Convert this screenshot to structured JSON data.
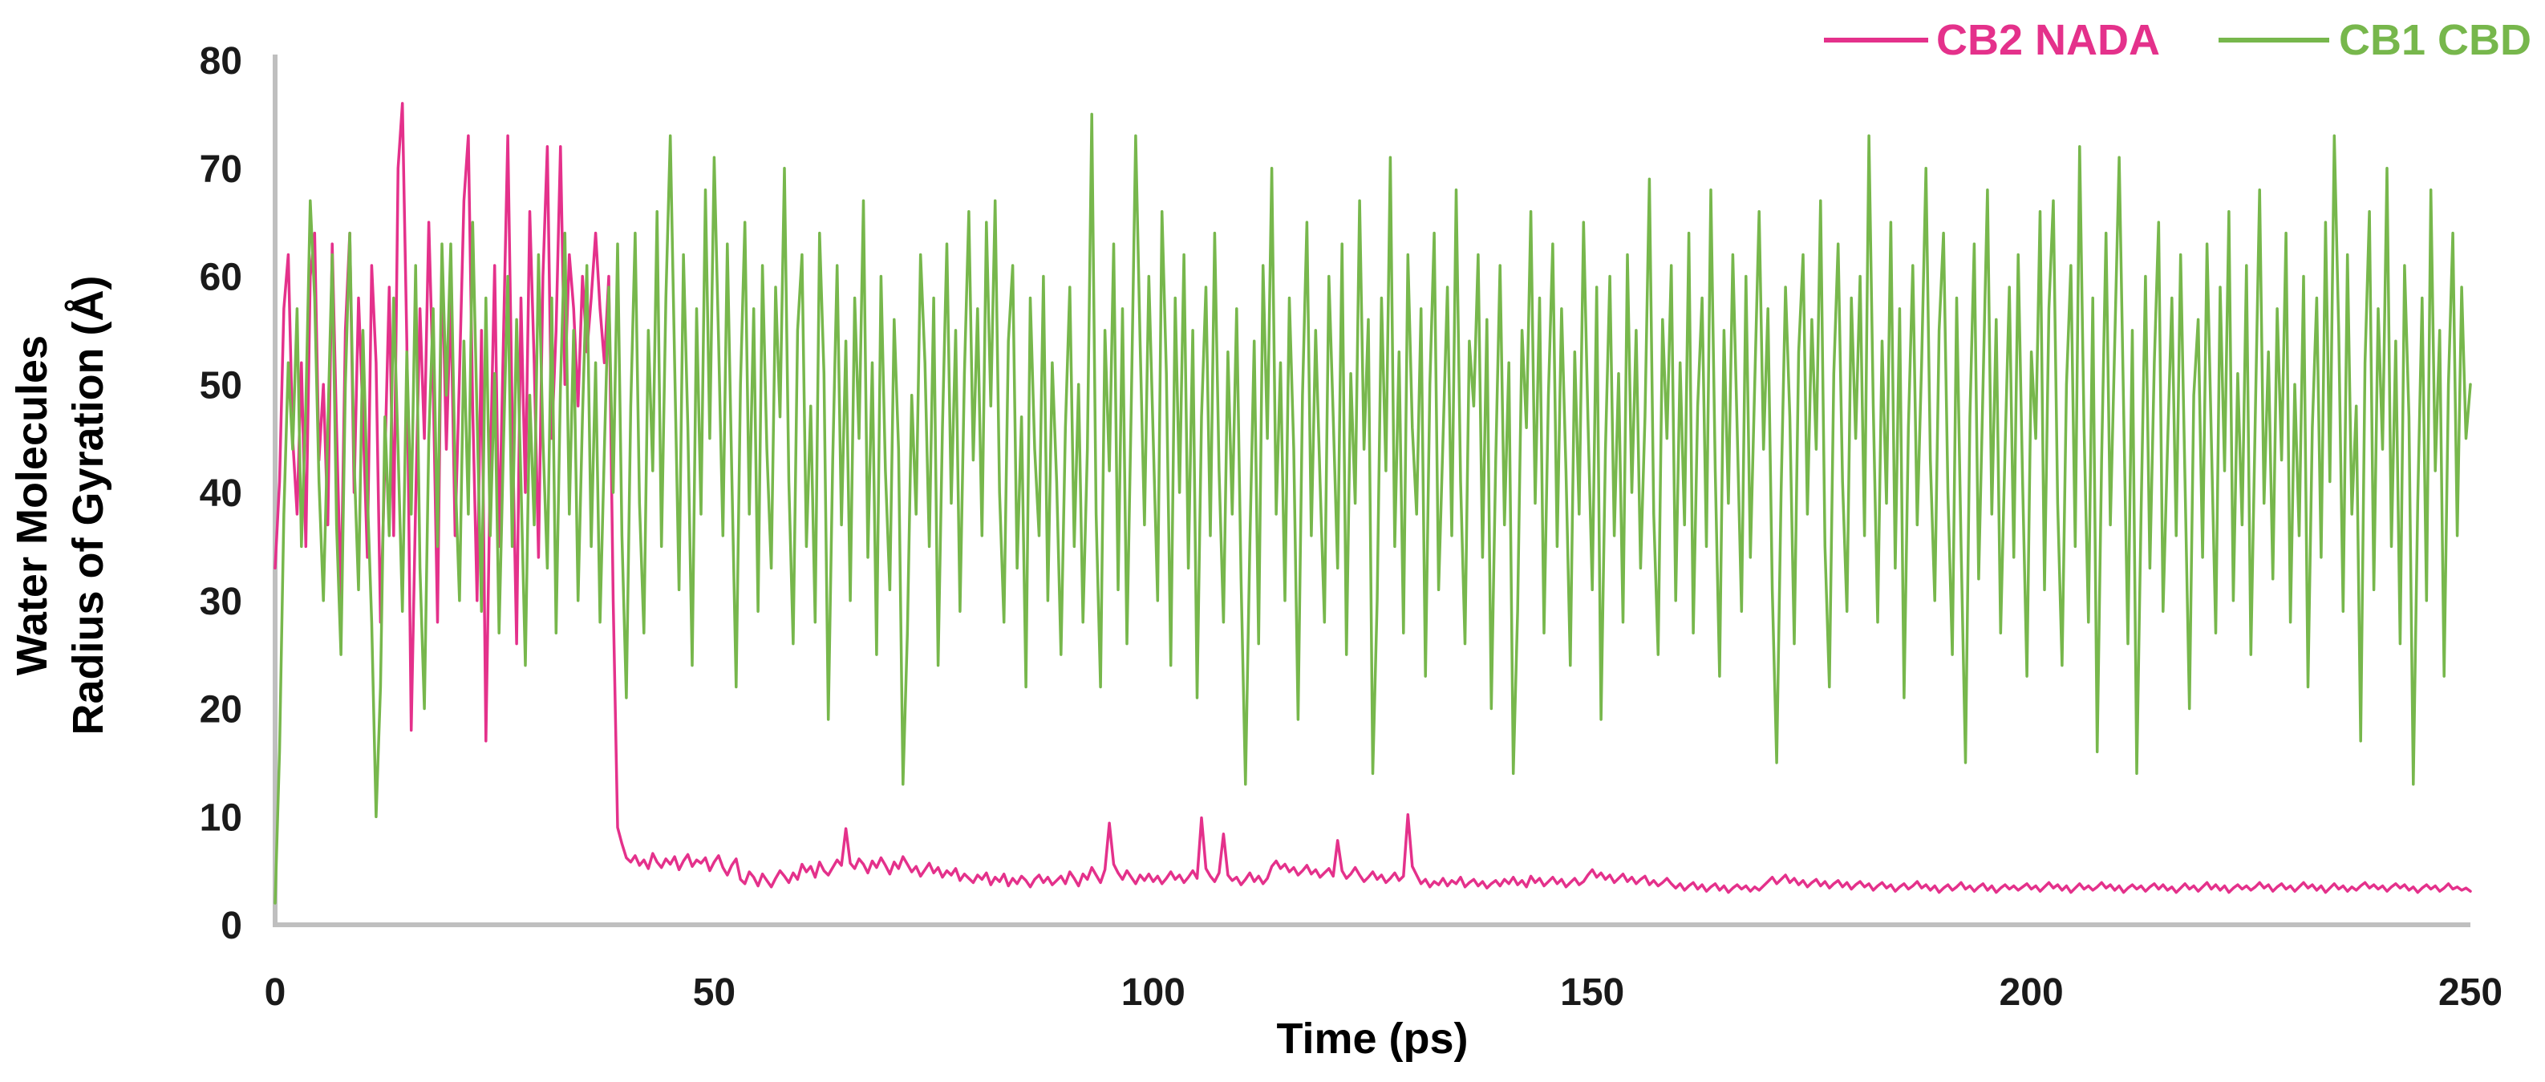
{
  "chart_data": {
    "type": "line",
    "title": "",
    "xlabel": "Time (ps)",
    "ylabel": "Water Molecules Radius of Gyration (Å)",
    "ylabel_lines": [
      "Water Molecules",
      "Radius of Gyration (Å)"
    ],
    "xlim": [
      0,
      250
    ],
    "ylim": [
      0,
      80
    ],
    "x_ticks": [
      0,
      50,
      100,
      150,
      200,
      250
    ],
    "y_ticks": [
      0,
      10,
      20,
      30,
      40,
      50,
      60,
      70,
      80
    ],
    "grid": false,
    "legend_position": "top-right",
    "legend": [
      "CB2 NADA",
      "CB1 CBD"
    ],
    "axis_color": "#bfbfbf",
    "series": [
      {
        "name": "CB2 NADA",
        "color": "#e4318b",
        "t_start": 0,
        "t_end": 250,
        "y": [
          33,
          41,
          57,
          62,
          45,
          38,
          52,
          35,
          60,
          64,
          43,
          50,
          37,
          63,
          46,
          30,
          55,
          64,
          40,
          58,
          47,
          34,
          61,
          52,
          28,
          43,
          59,
          36,
          70,
          76,
          54,
          18,
          39,
          57,
          45,
          65,
          50,
          28,
          62,
          44,
          58,
          36,
          51,
          67,
          73,
          48,
          30,
          55,
          17,
          42,
          61,
          35,
          54,
          73,
          47,
          26,
          58,
          40,
          66,
          52,
          34,
          60,
          72,
          45,
          55,
          72,
          50,
          62,
          57,
          48,
          60,
          53,
          58,
          64,
          57,
          52,
          60,
          30,
          9,
          7.5,
          6.2,
          5.8,
          6.4,
          5.5,
          6,
          5.2,
          6.6,
          5.8,
          5.3,
          6.1,
          5.6,
          6.3,
          5.1,
          5.9,
          6.5,
          5.4,
          6,
          5.7,
          6.2,
          5,
          5.8,
          6.4,
          5.3,
          4.6,
          5.5,
          6.1,
          4.2,
          3.8,
          4.9,
          4.4,
          3.6,
          4.7,
          4.1,
          3.5,
          4.3,
          5,
          4.5,
          3.9,
          4.8,
          4.2,
          5.6,
          4.9,
          5.4,
          4.4,
          5.8,
          5,
          4.6,
          5.3,
          6,
          5.5,
          8.9,
          5.7,
          5.2,
          6.1,
          5.6,
          4.8,
          5.9,
          5.3,
          6.2,
          5.5,
          4.7,
          5.8,
          5.2,
          6.3,
          5.6,
          4.9,
          5.4,
          4.5,
          5.1,
          5.7,
          4.8,
          5.3,
          4.4,
          5,
          4.6,
          5.2,
          4.1,
          4.7,
          4.3,
          3.9,
          4.6,
          4.2,
          4.8,
          3.7,
          4.4,
          4,
          4.7,
          3.6,
          4.3,
          3.8,
          4.5,
          4.1,
          3.5,
          4.2,
          4.6,
          3.9,
          4.4,
          3.7,
          4.1,
          4.5,
          3.8,
          4.9,
          4.3,
          3.6,
          4.7,
          4.2,
          5.3,
          4.6,
          3.9,
          5.1,
          9.4,
          5.6,
          4.8,
          4.2,
          5,
          4.4,
          3.8,
          4.6,
          4.1,
          4.7,
          4,
          4.5,
          3.8,
          4.3,
          4.9,
          4.2,
          4.6,
          3.9,
          4.4,
          5,
          4.3,
          9.9,
          5.2,
          4.5,
          4,
          4.8,
          8.4,
          4.6,
          4.1,
          4.4,
          3.7,
          4.2,
          4.8,
          4,
          4.5,
          3.8,
          4.3,
          5.4,
          5.9,
          5.2,
          5.6,
          4.9,
          5.3,
          4.6,
          5,
          5.5,
          4.7,
          5.1,
          4.4,
          4.8,
          5.2,
          4.5,
          7.8,
          5,
          4.3,
          4.7,
          5.3,
          4.6,
          4,
          4.4,
          4.9,
          4.2,
          4.6,
          3.9,
          4.3,
          4.8,
          4.1,
          4.5,
          10.2,
          5.4,
          4.6,
          3.8,
          4.2,
          3.5,
          4,
          3.7,
          4.3,
          3.6,
          4.1,
          3.8,
          4.4,
          3.5,
          3.9,
          4.2,
          3.6,
          4,
          3.4,
          3.8,
          4.1,
          3.6,
          4.2,
          3.8,
          4.4,
          3.7,
          4.1,
          3.5,
          4.5,
          3.9,
          4.3,
          3.6,
          4,
          4.4,
          3.8,
          4.2,
          3.5,
          3.9,
          4.3,
          3.7,
          4,
          4.6,
          5.1,
          4.4,
          4.8,
          4.2,
          4.6,
          3.9,
          4.3,
          4.7,
          4,
          4.4,
          3.8,
          4.2,
          4.5,
          3.7,
          4.1,
          3.6,
          3.9,
          4.3,
          3.8,
          3.4,
          3.8,
          3.2,
          3.6,
          3.9,
          3.3,
          3.7,
          3.1,
          3.5,
          3.8,
          3.2,
          3.6,
          3,
          3.4,
          3.7,
          3.3,
          3.6,
          3.1,
          3.5,
          3.2,
          3.6,
          4,
          4.4,
          3.8,
          4.2,
          4.6,
          3.9,
          4.3,
          3.7,
          4.1,
          3.5,
          3.9,
          4.2,
          3.6,
          4,
          3.4,
          3.8,
          4.1,
          3.5,
          3.9,
          3.3,
          3.7,
          4,
          3.5,
          3.8,
          3.2,
          3.6,
          3.9,
          3.4,
          3.7,
          3.1,
          3.5,
          3.8,
          3.3,
          3.6,
          4,
          3.4,
          3.7,
          3.2,
          3.6,
          3,
          3.4,
          3.7,
          3.2,
          3.5,
          3.9,
          3.3,
          3.6,
          3.1,
          3.5,
          3.8,
          3.2,
          3.6,
          3,
          3.4,
          3.7,
          3.3,
          3.6,
          3.2,
          3.5,
          3.8,
          3.3,
          3.6,
          3.1,
          3.5,
          3.9,
          3.4,
          3.7,
          3.2,
          3.6,
          3,
          3.4,
          3.8,
          3.3,
          3.6,
          3.2,
          3.5,
          3.9,
          3.4,
          3.7,
          3.2,
          3.6,
          3,
          3.4,
          3.7,
          3.3,
          3.6,
          3.1,
          3.5,
          3.8,
          3.3,
          3.7,
          3.2,
          3.5,
          3,
          3.4,
          3.8,
          3.3,
          3.6,
          3.1,
          3.5,
          3.9,
          3.3,
          3.7,
          3.2,
          3.6,
          3,
          3.4,
          3.7,
          3.3,
          3.6,
          3.2,
          3.5,
          3.9,
          3.4,
          3.7,
          3.1,
          3.5,
          3.8,
          3.3,
          3.6,
          3.1,
          3.5,
          3.9,
          3.4,
          3.7,
          3.2,
          3.6,
          3,
          3.4,
          3.8,
          3.3,
          3.6,
          3.1,
          3.5,
          3.2,
          3.6,
          3.9,
          3.4,
          3.7,
          3.3,
          3.6,
          3.1,
          3.5,
          3.8,
          3.4,
          3.7,
          3.2,
          3.5,
          3,
          3.4,
          3.7,
          3.3,
          3.6,
          3.1,
          3.4,
          3.8,
          3.3,
          3.5,
          3.2,
          3.4,
          3.1
        ]
      },
      {
        "name": "CB1 CBD",
        "color": "#77b74c",
        "t_start": 0,
        "t_end": 250,
        "y": [
          2,
          16,
          38,
          52,
          44,
          57,
          35,
          48,
          67,
          58,
          41,
          30,
          46,
          62,
          37,
          25,
          50,
          64,
          43,
          31,
          55,
          40,
          28,
          10,
          22,
          47,
          36,
          58,
          44,
          29,
          53,
          38,
          61,
          33,
          20,
          45,
          57,
          35,
          63,
          49,
          63,
          42,
          30,
          54,
          38,
          65,
          47,
          29,
          58,
          36,
          51,
          27,
          44,
          60,
          35,
          56,
          41,
          24,
          49,
          37,
          62,
          45,
          33,
          58,
          27,
          50,
          64,
          38,
          55,
          30,
          47,
          61,
          35,
          52,
          28,
          44,
          59,
          40,
          63,
          36,
          21,
          48,
          64,
          39,
          27,
          55,
          42,
          66,
          35,
          58,
          73,
          52,
          31,
          62,
          46,
          24,
          57,
          38,
          68,
          45,
          71,
          54,
          36,
          63,
          42,
          22,
          50,
          65,
          38,
          57,
          29,
          61,
          44,
          33,
          59,
          47,
          70,
          41,
          26,
          55,
          62,
          35,
          48,
          28,
          64,
          51,
          19,
          43,
          61,
          37,
          54,
          30,
          58,
          45,
          67,
          34,
          52,
          25,
          60,
          42,
          31,
          56,
          44,
          13,
          27,
          49,
          38,
          62,
          52,
          35,
          58,
          24,
          46,
          63,
          39,
          55,
          29,
          51,
          66,
          43,
          57,
          36,
          65,
          48,
          67,
          40,
          28,
          54,
          61,
          33,
          47,
          22,
          58,
          44,
          36,
          60,
          30,
          52,
          41,
          25,
          46,
          59,
          35,
          50,
          28,
          44,
          75,
          38,
          22,
          55,
          42,
          63,
          31,
          57,
          26,
          48,
          73,
          54,
          37,
          60,
          45,
          30,
          66,
          51,
          24,
          58,
          40,
          62,
          33,
          55,
          21,
          47,
          59,
          36,
          64,
          42,
          28,
          53,
          38,
          57,
          32,
          13,
          35,
          54,
          26,
          61,
          45,
          70,
          38,
          52,
          30,
          58,
          44,
          19,
          49,
          65,
          36,
          55,
          41,
          28,
          60,
          47,
          33,
          63,
          25,
          51,
          39,
          67,
          44,
          56,
          14,
          30,
          58,
          42,
          71,
          35,
          53,
          27,
          62,
          46,
          38,
          57,
          23,
          50,
          64,
          31,
          45,
          59,
          36,
          68,
          41,
          26,
          54,
          48,
          62,
          34,
          56,
          20,
          43,
          61,
          37,
          52,
          14,
          29,
          55,
          46,
          66,
          39,
          58,
          27,
          49,
          63,
          35,
          57,
          42,
          24,
          53,
          38,
          65,
          47,
          31,
          59,
          19,
          44,
          60,
          36,
          51,
          28,
          62,
          40,
          55,
          33,
          47,
          69,
          38,
          25,
          56,
          45,
          61,
          30,
          52,
          37,
          64,
          27,
          48,
          58,
          35,
          68,
          42,
          23,
          55,
          39,
          62,
          46,
          29,
          60,
          34,
          50,
          66,
          44,
          57,
          31,
          15,
          40,
          59,
          47,
          26,
          53,
          62,
          38,
          56,
          44,
          67,
          35,
          22,
          51,
          63,
          41,
          29,
          58,
          45,
          60,
          36,
          73,
          48,
          28,
          54,
          39,
          65,
          33,
          57,
          21,
          46,
          61,
          37,
          52,
          70,
          43,
          30,
          55,
          64,
          40,
          25,
          58,
          35,
          15,
          47,
          63,
          32,
          50,
          68,
          38,
          56,
          27,
          44,
          59,
          34,
          62,
          41,
          23,
          53,
          45,
          66,
          31,
          57,
          67,
          39,
          24,
          50,
          61,
          35,
          72,
          46,
          28,
          58,
          16,
          43,
          64,
          37,
          54,
          71,
          48,
          26,
          55,
          14,
          38,
          60,
          33,
          52,
          65,
          29,
          44,
          58,
          36,
          62,
          41,
          20,
          49,
          56,
          34,
          63,
          45,
          27,
          59,
          42,
          66,
          30,
          51,
          37,
          61,
          25,
          47,
          68,
          39,
          53,
          32,
          57,
          43,
          64,
          28,
          50,
          36,
          60,
          22,
          46,
          58,
          34,
          65,
          41,
          73,
          55,
          29,
          62,
          38,
          48,
          17,
          52,
          66,
          31,
          57,
          44,
          70,
          35,
          54,
          26,
          61,
          47,
          13,
          39,
          58,
          30,
          68,
          42,
          55,
          23,
          50,
          64,
          36,
          59,
          45,
          50
        ]
      }
    ]
  }
}
